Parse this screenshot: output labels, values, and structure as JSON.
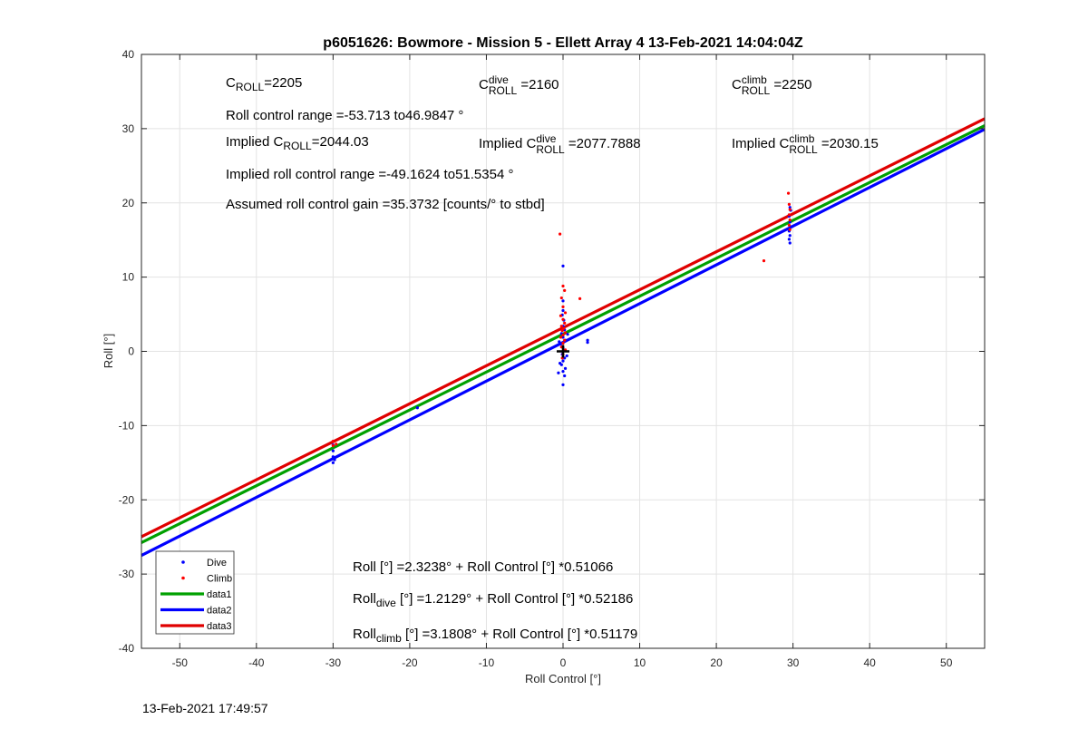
{
  "chart_data": {
    "type": "scatter",
    "title": "p6051626: Bowmore - Mission 5 - Ellett Array 4 13-Feb-2021 14:04:04Z",
    "xlabel": "Roll Control [°]",
    "ylabel": "Roll [°]",
    "xlim": [
      -55,
      55
    ],
    "ylim": [
      -40,
      40
    ],
    "xticks": [
      -50,
      -40,
      -30,
      -20,
      -10,
      0,
      10,
      20,
      30,
      40,
      50
    ],
    "yticks": [
      -40,
      -30,
      -20,
      -10,
      0,
      10,
      20,
      30,
      40
    ],
    "grid": true,
    "legend_position": "bottom-left",
    "series": [
      {
        "name": "Dive",
        "kind": "points",
        "color": "#0000ff",
        "points": [
          [
            -30,
            -12.6
          ],
          [
            -30,
            -13.4
          ],
          [
            -30,
            -14.2
          ],
          [
            -30,
            -15.0
          ],
          [
            -29.8,
            -14.6
          ],
          [
            -19,
            -7.6
          ],
          [
            0,
            11.5
          ],
          [
            0,
            6.8
          ],
          [
            0,
            5.5
          ],
          [
            -0.1,
            4.9
          ],
          [
            0.1,
            4.2
          ],
          [
            0,
            3.4
          ],
          [
            0.2,
            2.9
          ],
          [
            -0.2,
            2.4
          ],
          [
            0,
            1.9
          ],
          [
            0.3,
            1.5
          ],
          [
            -0.3,
            1.0
          ],
          [
            0,
            0.5
          ],
          [
            0.1,
            0.1
          ],
          [
            -0.1,
            -0.4
          ],
          [
            0.2,
            -0.9
          ],
          [
            0,
            -1.3
          ],
          [
            -0.2,
            -1.8
          ],
          [
            0.3,
            -2.3
          ],
          [
            0,
            -2.7
          ],
          [
            0.2,
            -3.3
          ],
          [
            0,
            -4.5
          ],
          [
            -0.4,
            -1.6
          ],
          [
            0.5,
            -0.6
          ],
          [
            -0.5,
            1.3
          ],
          [
            0.6,
            2.3
          ],
          [
            -0.6,
            -2.9
          ],
          [
            3.2,
            1.5
          ],
          [
            3.2,
            1.2
          ],
          [
            29.6,
            19.4
          ],
          [
            29.7,
            19.0
          ],
          [
            29.5,
            18.2
          ],
          [
            29.6,
            17.4
          ],
          [
            29.7,
            16.8
          ],
          [
            29.5,
            16.2
          ],
          [
            29.6,
            15.6
          ],
          [
            29.5,
            15.1
          ],
          [
            29.6,
            14.6
          ]
        ]
      },
      {
        "name": "Climb",
        "kind": "points",
        "color": "#ff0000",
        "points": [
          [
            -30,
            -12.1
          ],
          [
            -30,
            -12.7
          ],
          [
            -29.6,
            -12.5
          ],
          [
            -0.4,
            15.8
          ],
          [
            0,
            8.8
          ],
          [
            0.2,
            8.2
          ],
          [
            -0.2,
            7.2
          ],
          [
            0,
            6.0
          ],
          [
            0.3,
            5.2
          ],
          [
            -0.3,
            4.8
          ],
          [
            0,
            4.3
          ],
          [
            0.2,
            3.8
          ],
          [
            -0.2,
            3.4
          ],
          [
            0.1,
            3.1
          ],
          [
            -0.1,
            2.8
          ],
          [
            0.3,
            2.5
          ],
          [
            0,
            2.2
          ],
          [
            -0.3,
            1.9
          ],
          [
            0.2,
            1.5
          ],
          [
            0,
            1.1
          ],
          [
            -0.2,
            0.6
          ],
          [
            0.3,
            0.2
          ],
          [
            0,
            -0.4
          ],
          [
            -0.1,
            -0.9
          ],
          [
            2.2,
            7.1
          ],
          [
            26.2,
            12.2
          ],
          [
            29.4,
            21.3
          ],
          [
            29.5,
            19.8
          ],
          [
            29.6,
            19.1
          ],
          [
            29.5,
            18.4
          ],
          [
            29.6,
            17.7
          ],
          [
            29.5,
            17.0
          ],
          [
            29.6,
            16.4
          ]
        ]
      },
      {
        "name": "data1",
        "kind": "line",
        "color": "#00a000",
        "intercept": 2.3238,
        "slope": 0.51066
      },
      {
        "name": "data2",
        "kind": "line",
        "color": "#0000ff",
        "intercept": 1.2129,
        "slope": 0.52186
      },
      {
        "name": "data3",
        "kind": "line",
        "color": "#e00000",
        "intercept": 3.1808,
        "slope": 0.51179
      }
    ],
    "marker": {
      "x": 0,
      "y": 0,
      "symbol": "+"
    }
  },
  "annotations": {
    "c_roll": {
      "base": "C",
      "sub": "ROLL",
      "value": "=2205"
    },
    "c_roll_dive": {
      "base": "C",
      "sup": "dive",
      "sub": "ROLL",
      "value": "=2160"
    },
    "c_roll_climb": {
      "base": "C",
      "sup": "climb",
      "sub": "ROLL",
      "value": "=2250"
    },
    "roll_control_range": "Roll control range =-53.713 to46.9847 °",
    "implied_c_roll": {
      "prefix": "Implied C",
      "sub": "ROLL",
      "value": "=2044.03"
    },
    "implied_c_roll_dive": {
      "prefix": "Implied C",
      "sup": "dive",
      "sub": "ROLL",
      "value": "=2077.7888"
    },
    "implied_c_roll_climb": {
      "prefix": "Implied C",
      "sup": "climb",
      "sub": "ROLL",
      "value": "=2030.15"
    },
    "implied_roll_control_range": "Implied roll control range =-49.1624 to51.5354 °",
    "assumed_gain": "Assumed roll control gain =35.3732 [counts/° to stbd]",
    "fit_all": "Roll [°] =2.3238° + Roll Control [°] *0.51066",
    "fit_dive": {
      "base": "Roll",
      "sub": "dive",
      "rest": " [°] =1.2129° + Roll Control [°] *0.52186"
    },
    "fit_climb": {
      "base": "Roll",
      "sub": "climb",
      "rest": " [°] =3.1808° + Roll Control [°] *0.51179"
    }
  },
  "timestamp": "13-Feb-2021 17:49:57"
}
